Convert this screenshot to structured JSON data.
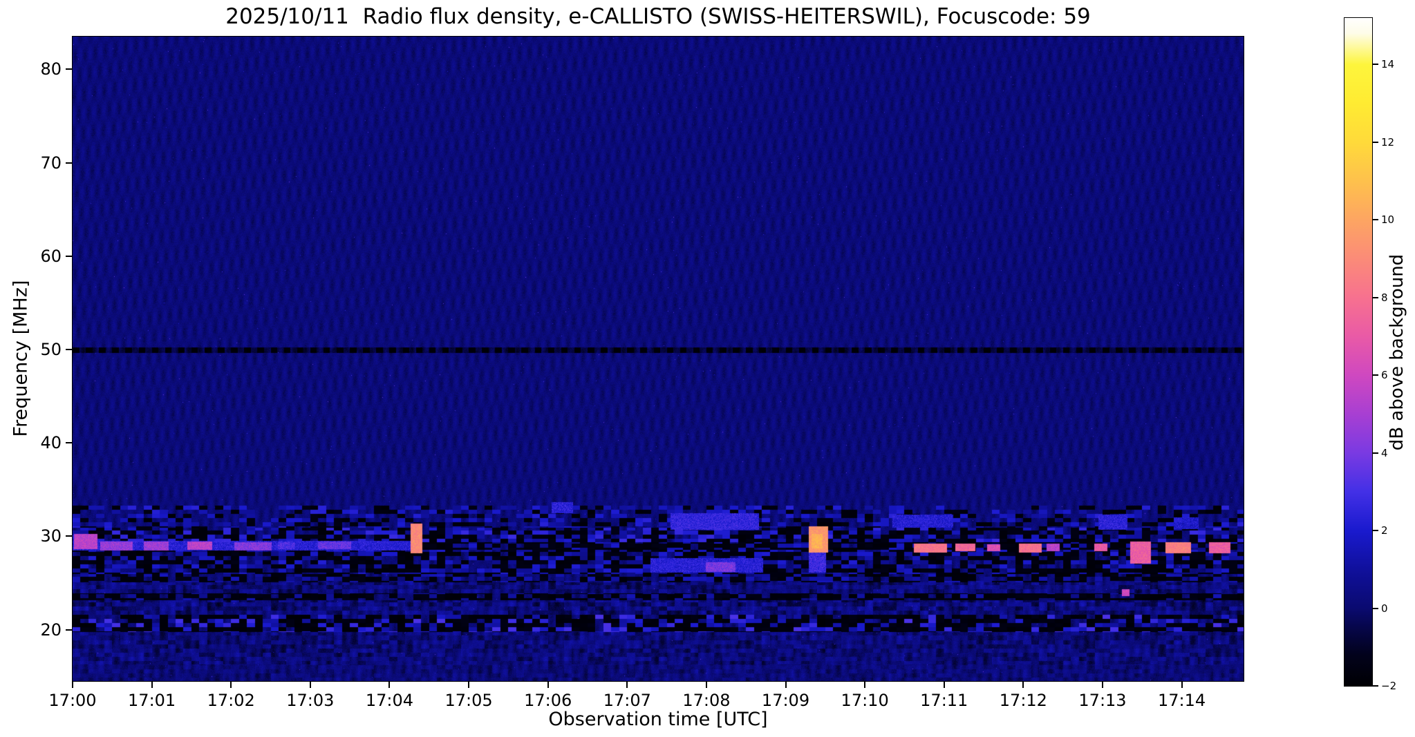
{
  "chart_data": {
    "type": "heatmap",
    "title": "2025/10/11  Radio flux density, e-CALLISTO (SWISS-HEITERSWIL), Focuscode: 59",
    "xlabel": "Observation time [UTC]",
    "ylabel": "Frequency [MHz]",
    "x_tick_labels": [
      "17:00",
      "17:01",
      "17:02",
      "17:03",
      "17:04",
      "17:05",
      "17:06",
      "17:07",
      "17:08",
      "17:09",
      "17:10",
      "17:11",
      "17:12",
      "17:13",
      "17:14"
    ],
    "x_tick_minutes": [
      0,
      1,
      2,
      3,
      4,
      5,
      6,
      7,
      8,
      9,
      10,
      11,
      12,
      13,
      14
    ],
    "x_range_minutes": [
      0,
      14.78
    ],
    "y_tick_labels": [
      "20",
      "30",
      "40",
      "50",
      "60",
      "70",
      "80"
    ],
    "y_tick_values": [
      20,
      30,
      40,
      50,
      60,
      70,
      80
    ],
    "y_range_mhz": [
      14.5,
      83.5
    ],
    "grid": false,
    "legend": null,
    "background_db": 0.2,
    "colorbar": {
      "label": "dB above background",
      "tick_labels": [
        "−2",
        "0",
        "2",
        "4",
        "6",
        "8",
        "10",
        "12",
        "14"
      ],
      "tick_values": [
        -2,
        0,
        2,
        4,
        6,
        8,
        10,
        12,
        14
      ],
      "range": [
        -2,
        15.2
      ]
    },
    "colormap_stops": [
      [
        -2.0,
        "#000003"
      ],
      [
        -1.2,
        "#02021c"
      ],
      [
        -0.5,
        "#06064a"
      ],
      [
        0.0,
        "#0a0a70"
      ],
      [
        1.0,
        "#10109c"
      ],
      [
        2.0,
        "#1a1ace"
      ],
      [
        3.0,
        "#4330e6"
      ],
      [
        4.0,
        "#7a3ae2"
      ],
      [
        5.0,
        "#a83fd2"
      ],
      [
        6.0,
        "#cf48c0"
      ],
      [
        7.0,
        "#e95aa6"
      ],
      [
        8.0,
        "#f7718f"
      ],
      [
        9.0,
        "#fb8b78"
      ],
      [
        10.0,
        "#fda562"
      ],
      [
        11.0,
        "#fec14c"
      ],
      [
        12.0,
        "#ffda3a"
      ],
      [
        13.0,
        "#ffeb32"
      ],
      [
        14.0,
        "#fdf53c"
      ],
      [
        14.8,
        "#fefce8"
      ],
      [
        15.2,
        "#ffffff"
      ]
    ],
    "features": {
      "bands": [
        {
          "name": "calibration-dashes-50mhz",
          "f": [
            49.65,
            50.25
          ],
          "style": "dashed-black",
          "dash_sec": 5
        },
        {
          "name": "rfi-patchy-31-33",
          "f": [
            30.9,
            33.3
          ],
          "style": "patchy",
          "black_p": 0.22,
          "blue_p": 0.3,
          "blue_db": [
            0.8,
            2.4
          ]
        },
        {
          "name": "rfi-patchy-29-31",
          "f": [
            29.4,
            30.9
          ],
          "style": "patchy",
          "black_p": 0.42,
          "blue_p": 0.34,
          "blue_db": [
            0.8,
            2.8
          ]
        },
        {
          "name": "rfi-dark-line-29",
          "f": [
            28.55,
            29.4
          ],
          "style": "patchy",
          "black_p": 0.75,
          "blue_p": 0.15,
          "blue_db": [
            0.5,
            2.0
          ]
        },
        {
          "name": "rfi-black-26-28",
          "f": [
            25.95,
            28.55
          ],
          "style": "patchy",
          "black_p": 0.52,
          "blue_p": 0.3,
          "blue_db": [
            0.5,
            2.2
          ]
        },
        {
          "name": "rfi-dark-25",
          "f": [
            25.1,
            25.95
          ],
          "style": "patchy",
          "black_p": 0.48,
          "blue_p": 0.22,
          "blue_db": [
            0.5,
            1.8
          ]
        },
        {
          "name": "mottled-24",
          "f": [
            23.9,
            25.1
          ],
          "style": "mottled",
          "amp": 0.8
        },
        {
          "name": "rfi-dashes-23",
          "f": [
            23.15,
            23.9
          ],
          "style": "patchy",
          "black_p": 0.68,
          "blue_p": 0.12,
          "blue_db": [
            0.5,
            1.6
          ]
        },
        {
          "name": "mottled-22",
          "f": [
            21.6,
            23.15
          ],
          "style": "mottled",
          "amp": 0.9
        },
        {
          "name": "rfi-blocks-20",
          "f": [
            19.75,
            21.6
          ],
          "style": "patchy",
          "black_p": 0.58,
          "blue_p": 0.3,
          "blue_db": [
            1.0,
            3.2
          ]
        },
        {
          "name": "mottled-18",
          "f": [
            16.3,
            19.75
          ],
          "style": "mottled",
          "amp": 0.7
        },
        {
          "name": "bottom-dim",
          "f": [
            14.5,
            16.3
          ],
          "style": "mottled",
          "amp": 0.45
        }
      ],
      "bursts": [
        {
          "t": [
            0.02,
            0.3
          ],
          "f": [
            28.7,
            30.2
          ],
          "db": 5.5
        },
        {
          "t": [
            0.0,
            4.25
          ],
          "f": [
            28.6,
            29.5
          ],
          "db": 2.3
        },
        {
          "t": [
            0.35,
            0.75
          ],
          "f": [
            28.6,
            29.4
          ],
          "db": 4.6
        },
        {
          "t": [
            0.9,
            1.2
          ],
          "f": [
            28.6,
            29.4
          ],
          "db": 4.8
        },
        {
          "t": [
            1.45,
            1.75
          ],
          "f": [
            28.65,
            29.4
          ],
          "db": 5.5
        },
        {
          "t": [
            2.05,
            2.5
          ],
          "f": [
            28.6,
            29.3
          ],
          "db": 4.2
        },
        {
          "t": [
            2.6,
            2.8
          ],
          "f": [
            28.7,
            29.3
          ],
          "db": 3.2
        },
        {
          "t": [
            3.1,
            3.5
          ],
          "f": [
            28.7,
            29.4
          ],
          "db": 3.6
        },
        {
          "t": [
            4.27,
            4.4
          ],
          "f": [
            28.3,
            31.3
          ],
          "db": 9.0
        },
        {
          "t": [
            6.05,
            6.3
          ],
          "f": [
            32.6,
            33.6
          ],
          "db": 2.4
        },
        {
          "t": [
            7.55,
            8.65
          ],
          "f": [
            30.8,
            32.4
          ],
          "db": 2.6
        },
        {
          "t": [
            7.3,
            8.7
          ],
          "f": [
            26.2,
            27.6
          ],
          "db": 2.3
        },
        {
          "t": [
            8.0,
            8.35
          ],
          "f": [
            26.3,
            27.2
          ],
          "db": 4.0
        },
        {
          "t": [
            9.3,
            9.52
          ],
          "f": [
            28.4,
            31.0
          ],
          "db": 9.5
        },
        {
          "t": [
            9.33,
            9.45
          ],
          "f": [
            28.8,
            30.2
          ],
          "db": 10.5
        },
        {
          "t": [
            9.3,
            9.5
          ],
          "f": [
            26.2,
            28.4
          ],
          "db": 2.8
        },
        {
          "t": [
            10.35,
            11.1
          ],
          "f": [
            31.0,
            32.3
          ],
          "db": 2.2
        },
        {
          "t": [
            10.62,
            11.02
          ],
          "f": [
            28.4,
            29.2
          ],
          "db": 8.2
        },
        {
          "t": [
            11.15,
            11.38
          ],
          "f": [
            28.5,
            29.2
          ],
          "db": 7.6
        },
        {
          "t": [
            11.55,
            11.7
          ],
          "f": [
            28.5,
            29.1
          ],
          "db": 6.5
        },
        {
          "t": [
            11.95,
            12.22
          ],
          "f": [
            28.4,
            29.2
          ],
          "db": 8.0
        },
        {
          "t": [
            12.3,
            12.45
          ],
          "f": [
            28.5,
            29.2
          ],
          "db": 5.5
        },
        {
          "t": [
            12.9,
            13.05
          ],
          "f": [
            28.5,
            29.2
          ],
          "db": 7.0
        },
        {
          "t": [
            12.95,
            13.3
          ],
          "f": [
            30.8,
            32.3
          ],
          "db": 2.4
        },
        {
          "t": [
            13.25,
            13.33
          ],
          "f": [
            23.7,
            24.3
          ],
          "db": 6.0
        },
        {
          "t": [
            13.35,
            13.6
          ],
          "f": [
            27.2,
            29.4
          ],
          "db": 7.2
        },
        {
          "t": [
            13.8,
            14.1
          ],
          "f": [
            28.3,
            29.3
          ],
          "db": 8.6
        },
        {
          "t": [
            13.9,
            14.2
          ],
          "f": [
            30.9,
            32.0
          ],
          "db": 2.0
        },
        {
          "t": [
            14.35,
            14.6
          ],
          "f": [
            28.3,
            29.3
          ],
          "db": 7.2
        }
      ]
    }
  }
}
